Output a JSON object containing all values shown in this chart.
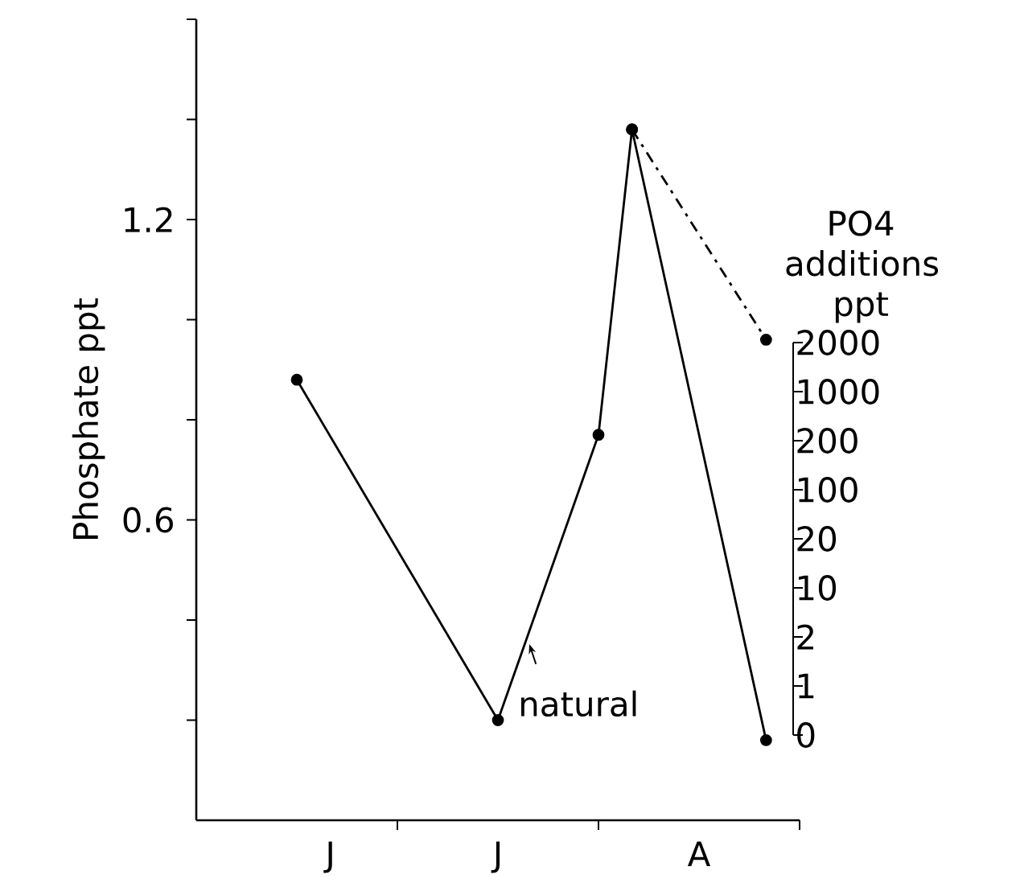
{
  "chart_data": {
    "type": "line",
    "ylabel": "Phosphate ppt",
    "categories": [
      null,
      null,
      null,
      null,
      "J",
      null,
      null,
      null,
      null,
      "J",
      null,
      null,
      null,
      null,
      null,
      "A",
      null,
      null,
      null
    ],
    "ylim": [
      0,
      1.6
    ],
    "yticks": [
      {
        "value": 0.2,
        "label": null
      },
      {
        "value": 0.4,
        "label": null
      },
      0.6,
      {
        "value": 0.8,
        "label": null
      },
      {
        "value": 1.0,
        "label": null
      },
      1.2,
      {
        "value": 1.4,
        "label": null
      },
      {
        "value": 1.6,
        "label": null
      }
    ],
    "marker": "circle",
    "line_style": "solid",
    "grid": false,
    "series": [
      {
        "color": "#000000",
        "values": [
          null,
          null,
          null,
          0.88,
          null,
          null,
          null,
          null,
          null,
          0.2,
          null,
          null,
          0.77,
          1.38,
          null,
          null,
          null,
          0.16,
          null
        ]
      },
      {
        "color": "#000000",
        "values": [
          null,
          null,
          null,
          null,
          null,
          null,
          null,
          null,
          null,
          null,
          null,
          null,
          null,
          1.38,
          null,
          null,
          null,
          0.96,
          null
        ],
        "line_style": "dashed"
      }
    ],
    "annotations": [
      "natural",
      "PO4 additions ppt",
      "2000",
      "1000",
      "200",
      "100",
      "20",
      "10",
      "2",
      "1",
      "0"
    ]
  }
}
